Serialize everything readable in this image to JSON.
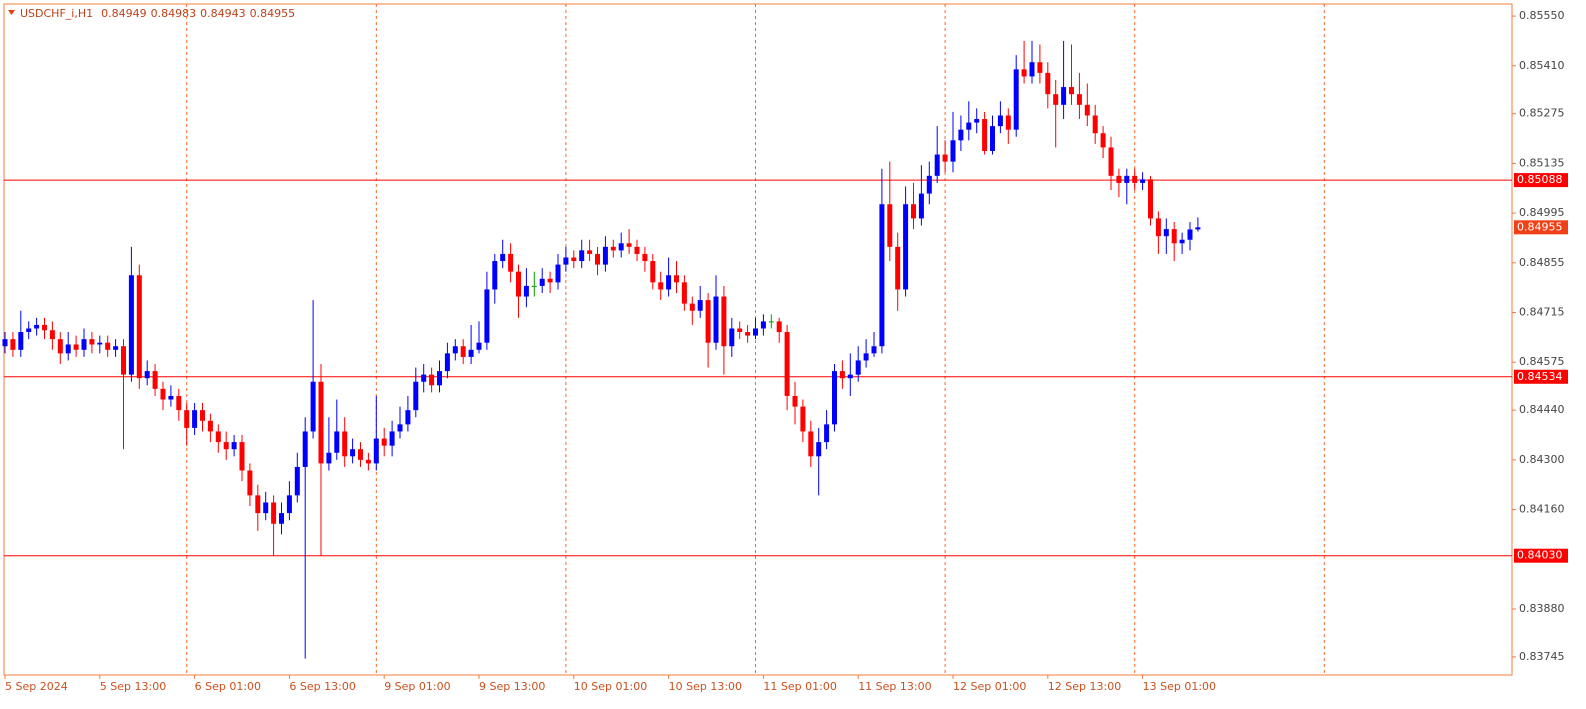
{
  "chart_data": {
    "type": "candlestick",
    "symbol": "USDCHF_i,H1",
    "categories": [
      "5 Sep 2024",
      null,
      null,
      null,
      null,
      null,
      null,
      null,
      null,
      null,
      null,
      null,
      "5 Sep 13:00",
      null,
      null,
      null,
      null,
      null,
      null,
      null,
      null,
      null,
      null,
      null,
      "6 Sep 01:00",
      null,
      null,
      null,
      null,
      null,
      null,
      null,
      null,
      null,
      null,
      null,
      "6 Sep 13:00",
      null,
      null,
      null,
      null,
      null,
      null,
      null,
      null,
      null,
      null,
      null,
      "9 Sep 01:00",
      null,
      null,
      null,
      null,
      null,
      null,
      null,
      null,
      null,
      null,
      null,
      "9 Sep 13:00",
      null,
      null,
      null,
      null,
      null,
      null,
      null,
      null,
      null,
      null,
      null,
      "10 Sep 01:00",
      null,
      null,
      null,
      null,
      null,
      null,
      null,
      null,
      null,
      null,
      null,
      "10 Sep 13:00",
      null,
      null,
      null,
      null,
      null,
      null,
      null,
      null,
      null,
      null,
      null,
      "11 Sep 01:00",
      null,
      null,
      null,
      null,
      null,
      null,
      null,
      null,
      null,
      null,
      null,
      "11 Sep 13:00",
      null,
      null,
      null,
      null,
      null,
      null,
      null,
      null,
      null,
      null,
      null,
      "12 Sep 01:00",
      null,
      null,
      null,
      null,
      null,
      null,
      null,
      null,
      null,
      null,
      null,
      "12 Sep 13:00",
      null,
      null,
      null,
      null,
      null,
      null,
      null,
      null,
      null,
      null,
      null,
      "13 Sep 01:00",
      null,
      null,
      null,
      null,
      null,
      null,
      null
    ],
    "open": [
      0.8462,
      0.8464,
      0.8461,
      0.8466,
      0.8467,
      0.8468,
      0.84665,
      0.8464,
      0.846,
      0.84625,
      0.8461,
      0.8464,
      0.84625,
      0.8463,
      0.8461,
      0.8462,
      0.8454,
      0.8482,
      0.8453,
      0.8455,
      0.845,
      0.8447,
      0.8448,
      0.8444,
      0.8439,
      0.8444,
      0.8441,
      0.8438,
      0.8435,
      0.8433,
      0.8435,
      0.8427,
      0.842,
      0.8415,
      0.8418,
      0.8412,
      0.8415,
      0.842,
      0.8428,
      0.8438,
      0.8452,
      0.8429,
      0.8432,
      0.8438,
      0.8431,
      0.8433,
      0.843,
      0.8429,
      0.8436,
      0.8434,
      0.8438,
      0.844,
      0.8444,
      0.8452,
      0.8454,
      0.8451,
      0.8455,
      0.846,
      0.8462,
      0.8459,
      0.8461,
      0.8463,
      0.8478,
      0.8486,
      0.8488,
      0.8483,
      0.8476,
      0.8479,
      0.8479,
      0.8481,
      0.848,
      0.8485,
      0.8487,
      0.8486,
      0.8489,
      0.8488,
      0.8485,
      0.849,
      0.8489,
      0.8491,
      0.849,
      0.8488,
      0.8486,
      0.848,
      0.8478,
      0.8482,
      0.848,
      0.8474,
      0.8472,
      0.8475,
      0.8463,
      0.8476,
      0.8462,
      0.8467,
      0.8466,
      0.8465,
      0.8467,
      0.8469,
      0.8469,
      0.8466,
      0.8448,
      0.8445,
      0.8438,
      0.8431,
      0.8435,
      0.844,
      0.8455,
      0.8453,
      0.8454,
      0.8458,
      0.846,
      0.8462,
      0.8502,
      0.849,
      0.8478,
      0.8502,
      0.8498,
      0.8505,
      0.851,
      0.8516,
      0.8514,
      0.852,
      0.8523,
      0.8525,
      0.8526,
      0.8517,
      0.8524,
      0.8527,
      0.8523,
      0.854,
      0.8538,
      0.8542,
      0.8539,
      0.8533,
      0.853,
      0.8535,
      0.8533,
      0.853,
      0.8527,
      0.8522,
      0.8518,
      0.851,
      0.8508,
      0.851,
      0.8508,
      0.8509,
      0.8498,
      0.8493,
      0.8495,
      0.8491,
      0.8492,
      0.84949
    ],
    "high": [
      0.8466,
      0.8466,
      0.8472,
      0.8469,
      0.847,
      0.847,
      0.8469,
      0.8466,
      0.8466,
      0.8465,
      0.8467,
      0.8466,
      0.8465,
      0.8465,
      0.8464,
      0.8464,
      0.849,
      0.8485,
      0.8458,
      0.8457,
      0.8452,
      0.8451,
      0.845,
      0.8446,
      0.8446,
      0.8446,
      0.8443,
      0.844,
      0.8438,
      0.8437,
      0.8437,
      0.8429,
      0.8423,
      0.8421,
      0.842,
      0.8418,
      0.8424,
      0.8432,
      0.8442,
      0.8475,
      0.8457,
      0.8442,
      0.8447,
      0.8442,
      0.8436,
      0.8435,
      0.8432,
      0.8448,
      0.8439,
      0.8441,
      0.8445,
      0.8448,
      0.8456,
      0.8457,
      0.8456,
      0.8458,
      0.8463,
      0.8464,
      0.8464,
      0.8468,
      0.8469,
      0.8483,
      0.8488,
      0.8492,
      0.8491,
      0.8485,
      0.8484,
      0.8483,
      0.8484,
      0.8483,
      0.8488,
      0.849,
      0.8489,
      0.8492,
      0.8492,
      0.849,
      0.8493,
      0.8492,
      0.8494,
      0.8495,
      0.8492,
      0.849,
      0.8488,
      0.8483,
      0.8487,
      0.8486,
      0.8482,
      0.8476,
      0.8479,
      0.8477,
      0.8482,
      0.8479,
      0.847,
      0.8469,
      0.8468,
      0.847,
      0.8471,
      0.8471,
      0.847,
      0.8468,
      0.8452,
      0.8447,
      0.8441,
      0.8439,
      0.8444,
      0.8457,
      0.8458,
      0.846,
      0.8462,
      0.8464,
      0.8466,
      0.8512,
      0.8514,
      0.8494,
      0.8507,
      0.8508,
      0.8513,
      0.8514,
      0.8524,
      0.852,
      0.8528,
      0.8527,
      0.8531,
      0.8529,
      0.8528,
      0.8527,
      0.8531,
      0.8529,
      0.8544,
      0.8548,
      0.8548,
      0.8547,
      0.8542,
      0.8537,
      0.8548,
      0.8547,
      0.8539,
      0.8536,
      0.853,
      0.8524,
      0.8521,
      0.8512,
      0.8512,
      0.8512,
      0.8511,
      0.851,
      0.85,
      0.8498,
      0.8497,
      0.8494,
      0.8497,
      0.84983
    ],
    "low": [
      0.846,
      0.8459,
      0.8459,
      0.8464,
      0.8465,
      0.8464,
      0.8461,
      0.8457,
      0.8458,
      0.8459,
      0.8459,
      0.846,
      0.846,
      0.8459,
      0.8459,
      0.8433,
      0.8452,
      0.845,
      0.8451,
      0.8448,
      0.8444,
      0.8445,
      0.8441,
      0.8434,
      0.8437,
      0.8438,
      0.8435,
      0.8432,
      0.843,
      0.8431,
      0.8424,
      0.8417,
      0.841,
      0.8413,
      0.8403,
      0.8409,
      0.8413,
      0.8418,
      0.8374,
      0.8436,
      0.8403,
      0.8427,
      0.843,
      0.8428,
      0.8429,
      0.8428,
      0.8427,
      0.8427,
      0.8431,
      0.8431,
      0.8436,
      0.8438,
      0.8442,
      0.8449,
      0.8449,
      0.8449,
      0.8453,
      0.8458,
      0.8457,
      0.8457,
      0.846,
      0.8461,
      0.8474,
      0.8484,
      0.848,
      0.847,
      0.8473,
      0.8476,
      0.8477,
      0.8477,
      0.8478,
      0.8483,
      0.8484,
      0.8484,
      0.8486,
      0.8482,
      0.8483,
      0.8487,
      0.8487,
      0.8488,
      0.8486,
      0.8483,
      0.8478,
      0.8475,
      0.8476,
      0.8477,
      0.8472,
      0.8468,
      0.847,
      0.8456,
      0.8461,
      0.8454,
      0.8459,
      0.8464,
      0.8463,
      0.8464,
      0.8465,
      0.8467,
      0.8463,
      0.8444,
      0.844,
      0.8435,
      0.8428,
      0.842,
      0.8433,
      0.8438,
      0.845,
      0.8448,
      0.8452,
      0.8456,
      0.8459,
      0.846,
      0.8486,
      0.8472,
      0.8476,
      0.8495,
      0.8496,
      0.8502,
      0.8508,
      0.8511,
      0.8511,
      0.8517,
      0.852,
      0.8522,
      0.8516,
      0.8516,
      0.8522,
      0.8519,
      0.8521,
      0.8536,
      0.8536,
      0.8536,
      0.8529,
      0.8518,
      0.8526,
      0.853,
      0.8526,
      0.8524,
      0.8519,
      0.8515,
      0.8506,
      0.8504,
      0.8502,
      0.8506,
      0.8506,
      0.8496,
      0.8488,
      0.8488,
      0.8486,
      0.8488,
      0.8489,
      0.84943
    ],
    "close": [
      0.8464,
      0.8461,
      0.8466,
      0.8467,
      0.8468,
      0.84665,
      0.8464,
      0.846,
      0.84625,
      0.8461,
      0.8464,
      0.84625,
      0.8463,
      0.8461,
      0.8462,
      0.8454,
      0.8482,
      0.8453,
      0.8455,
      0.845,
      0.8447,
      0.8448,
      0.8444,
      0.8439,
      0.8444,
      0.8441,
      0.8438,
      0.8435,
      0.8433,
      0.8435,
      0.8427,
      0.842,
      0.8415,
      0.8418,
      0.8412,
      0.8415,
      0.842,
      0.8428,
      0.8438,
      0.8452,
      0.8429,
      0.8432,
      0.8438,
      0.8431,
      0.8433,
      0.843,
      0.8429,
      0.8436,
      0.8434,
      0.8438,
      0.844,
      0.8444,
      0.8452,
      0.8454,
      0.8451,
      0.8455,
      0.846,
      0.8462,
      0.8459,
      0.8461,
      0.8463,
      0.8478,
      0.8486,
      0.8488,
      0.8483,
      0.8476,
      0.8479,
      0.8479,
      0.8481,
      0.848,
      0.8485,
      0.8487,
      0.8486,
      0.8489,
      0.8488,
      0.8485,
      0.849,
      0.8489,
      0.8491,
      0.849,
      0.8488,
      0.8486,
      0.848,
      0.8478,
      0.8482,
      0.848,
      0.8474,
      0.8472,
      0.8475,
      0.8463,
      0.8476,
      0.8462,
      0.8467,
      0.8466,
      0.8465,
      0.8467,
      0.8469,
      0.8469,
      0.8466,
      0.8448,
      0.8445,
      0.8438,
      0.8431,
      0.8435,
      0.844,
      0.8455,
      0.8453,
      0.8454,
      0.8458,
      0.846,
      0.8462,
      0.8502,
      0.849,
      0.8478,
      0.8502,
      0.8498,
      0.8505,
      0.851,
      0.8516,
      0.8514,
      0.852,
      0.8523,
      0.8525,
      0.8526,
      0.8517,
      0.8524,
      0.8527,
      0.8523,
      0.854,
      0.8538,
      0.8542,
      0.8539,
      0.8533,
      0.853,
      0.8535,
      0.8533,
      0.853,
      0.8527,
      0.8522,
      0.8518,
      0.851,
      0.8508,
      0.851,
      0.8508,
      0.8509,
      0.8498,
      0.8493,
      0.8495,
      0.8491,
      0.8492,
      0.84949,
      0.84955
    ],
    "up_color": "#0000ff",
    "down_color": "#ff0000",
    "ylim": [
      0.83694,
      0.85584
    ],
    "yticks": [
      {
        "value": 0.8555,
        "label": "0.85550"
      },
      {
        "value": 0.8541,
        "label": "0.85410"
      },
      {
        "value": 0.85275,
        "label": "0.85275"
      },
      {
        "value": 0.85135,
        "label": "0.85135"
      },
      {
        "value": 0.84995,
        "label": "0.84995"
      },
      {
        "value": 0.84855,
        "label": "0.84855"
      },
      {
        "value": 0.84715,
        "label": "0.84715"
      },
      {
        "value": 0.84575,
        "label": "0.84575"
      },
      {
        "value": 0.8444,
        "label": "0.84440"
      },
      {
        "value": 0.843,
        "label": "0.84300"
      },
      {
        "value": 0.8416,
        "label": "0.84160"
      },
      {
        "value": 0.8388,
        "label": "0.83880"
      },
      {
        "value": 0.83745,
        "label": "0.83745"
      }
    ],
    "levels": [
      {
        "value": 0.85088,
        "label": "0.85088"
      },
      {
        "value": 0.84534,
        "label": "0.84534"
      },
      {
        "value": 0.8403,
        "label": "0.84030"
      }
    ],
    "level_color": "#ff0000",
    "current_price": {
      "value": 0.84955,
      "label": "0.84955"
    }
  }
}
